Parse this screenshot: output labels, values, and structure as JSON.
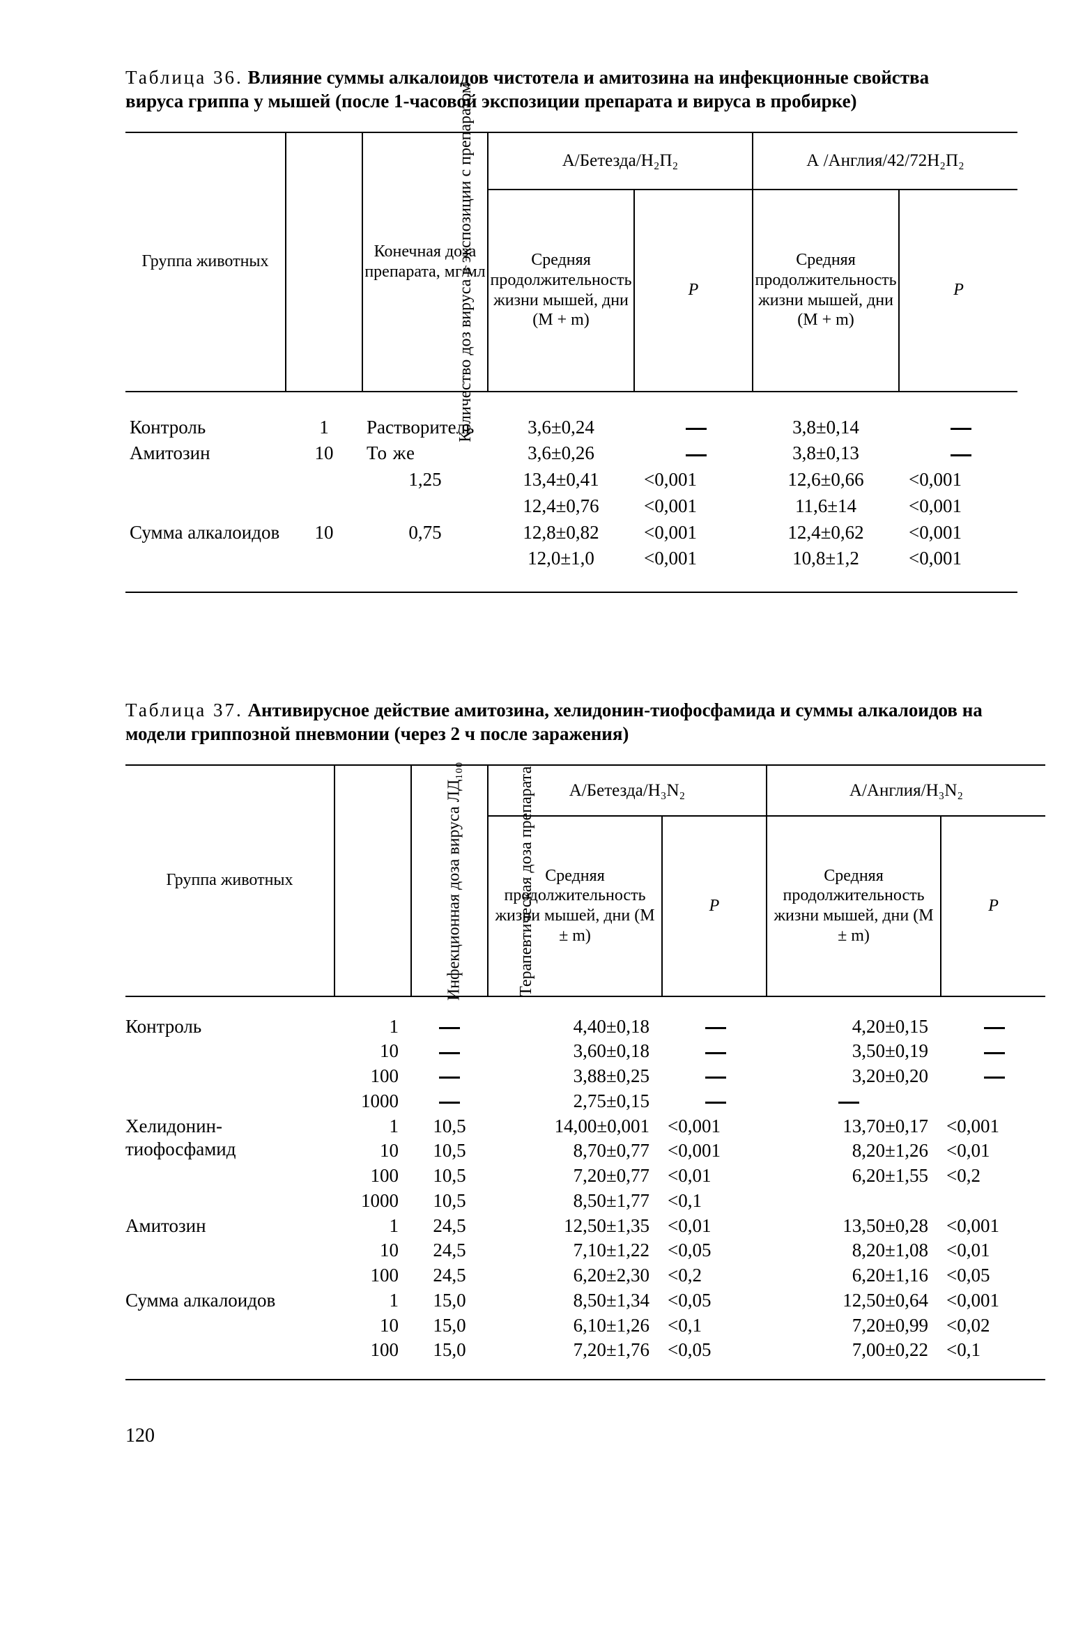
{
  "page_number": "120",
  "table36": {
    "caption_prefix": "Таблица 36.",
    "caption_bold": "Влияние суммы алкалоидов чистотела и амитозина на инфекционные свойства вируса гриппа у мышей (после 1-часовой экспозиции препарата и вируса в пробирке)",
    "headers": {
      "group": "Группа животных",
      "dose_virus": "Количество доз вируса в экспозиции с препаратом",
      "final_dose": "Конечная доза препарата, мг/мл",
      "strainA": "А/Бетезда/Н₂П₂",
      "strainB": "А /Англия/42/72Н₂П₂",
      "mean_life": "Средняя продолжительность жизни мышей, дни (M + m)",
      "mean_life_b": "Средняя продолжительность жизни мышей, дни (M + m)",
      "P": "P"
    },
    "rows": [
      {
        "group": "Контроль",
        "virus_dose": "1",
        "final_dose": [
          "Растворитель"
        ],
        "A_M": [
          "3,6±0,24"
        ],
        "A_P": [
          "—"
        ],
        "B_M": [
          "3,8±0,14"
        ],
        "B_P": [
          "—"
        ]
      },
      {
        "group": "Амитозин",
        "virus_dose": "10",
        "final_dose": [
          "То же",
          "1,25",
          ""
        ],
        "A_M": [
          "3,6±0,26",
          "13,4±0,41",
          "12,4±0,76"
        ],
        "A_P": [
          "—",
          "<0,001",
          "<0,001"
        ],
        "B_M": [
          "3,8±0,13",
          "12,6±0,66",
          "11,6±14"
        ],
        "B_P": [
          "—",
          "<0,001",
          "<0,001"
        ]
      },
      {
        "group": "Сумма алкалоидов",
        "virus_dose": "10",
        "final_dose": [
          "0,75",
          ""
        ],
        "A_M": [
          "12,8±0,82",
          "12,0±1,0"
        ],
        "A_P": [
          "<0,001",
          "<0,001"
        ],
        "B_M": [
          "12,4±0,62",
          "10,8±1,2"
        ],
        "B_P": [
          "<0,001",
          "<0,001"
        ]
      }
    ]
  },
  "table37": {
    "caption_prefix": "Таблица 37.",
    "caption_bold": "Антивирусное действие амитозина, хелидонин-тиофосфамида и суммы алкалоидов на модели гриппозной пневмонии (через 2 ч после заражения)",
    "headers": {
      "group": "Группа животных",
      "inf_dose": "Инфекционная доза вируса ЛД₁₀₀",
      "ther_dose": "Терапевтическая доза препарата",
      "strainA": "А/Бетезда/Н₃N₂",
      "strainB": "А/Англия/Н₃N₂",
      "mean_life_A": "Средняя продолжительность жизни мышей, дни (M ± m)",
      "mean_life_B": "Средняя продолжительность жизни мышей, дни (M ± m)",
      "P": "P"
    },
    "rows": [
      {
        "group": "Контроль",
        "lines": [
          {
            "d": "1",
            "t": "—",
            "aM": "4,40±0,18",
            "aP": "—",
            "bM": "4,20±0,15",
            "bP": "—"
          },
          {
            "d": "10",
            "t": "—",
            "aM": "3,60±0,18",
            "aP": "—",
            "bM": "3,50±0,19",
            "bP": "—"
          },
          {
            "d": "100",
            "t": "—",
            "aM": "3,88±0,25",
            "aP": "—",
            "bM": "3,20±0,20",
            "bP": "—"
          },
          {
            "d": "1000",
            "t": "—",
            "aM": "2,75±0,15",
            "aP": "—",
            "bM": "—",
            "bP": ""
          }
        ]
      },
      {
        "group": "Хелидонин-тиофосфамид",
        "lines": [
          {
            "d": "1",
            "t": "10,5",
            "aM": "14,00±0,001",
            "aP": "<0,001",
            "bM": "13,70±0,17",
            "bP": "<0,001"
          },
          {
            "d": "10",
            "t": "10,5",
            "aM": "8,70±0,77",
            "aP": "<0,001",
            "bM": "8,20±1,26",
            "bP": "<0,01"
          },
          {
            "d": "100",
            "t": "10,5",
            "aM": "7,20±0,77",
            "aP": "<0,01",
            "bM": "6,20±1,55",
            "bP": "<0,2"
          },
          {
            "d": "1000",
            "t": "10,5",
            "aM": "8,50±1,77",
            "aP": "<0,1",
            "bM": "",
            "bP": ""
          }
        ]
      },
      {
        "group": "Амитозин",
        "lines": [
          {
            "d": "1",
            "t": "24,5",
            "aM": "12,50±1,35",
            "aP": "<0,01",
            "bM": "13,50±0,28",
            "bP": "<0,001"
          },
          {
            "d": "10",
            "t": "24,5",
            "aM": "7,10±1,22",
            "aP": "<0,05",
            "bM": "8,20±1,08",
            "bP": "<0,01"
          },
          {
            "d": "100",
            "t": "24,5",
            "aM": "6,20±2,30",
            "aP": "<0,2",
            "bM": "6,20±1,16",
            "bP": "<0,05"
          }
        ]
      },
      {
        "group": "Сумма алкалоидов",
        "lines": [
          {
            "d": "1",
            "t": "15,0",
            "aM": "8,50±1,34",
            "aP": "<0,05",
            "bM": "12,50±0,64",
            "bP": "<0,001"
          },
          {
            "d": "10",
            "t": "15,0",
            "aM": "6,10±1,26",
            "aP": "<0,1",
            "bM": "7,20±0,99",
            "bP": "<0,02"
          },
          {
            "d": "100",
            "t": "15,0",
            "aM": "7,20±1,76",
            "aP": "<0,05",
            "bM": "7,00±0,22",
            "bP": "<0,1"
          }
        ]
      }
    ]
  }
}
